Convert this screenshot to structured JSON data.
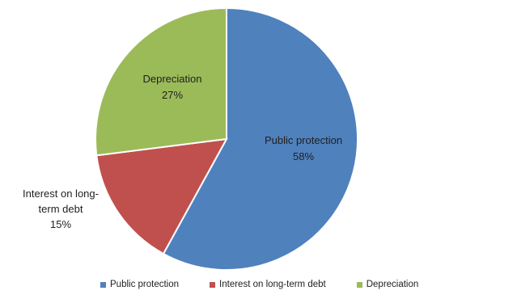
{
  "chart_data": {
    "type": "pie",
    "title": "",
    "slices": [
      {
        "name": "Public protection",
        "value": 58,
        "label": "58%",
        "color": "#4f81bd"
      },
      {
        "name": "Interest on long-term debt",
        "value": 15,
        "label": "15%",
        "color": "#c0504d"
      },
      {
        "name": "Depreciation",
        "value": 27,
        "label": "27%",
        "color": "#9bbb59"
      }
    ],
    "data_label_lines": {
      "public_protection": [
        "Public protection",
        "58%"
      ],
      "interest": [
        "Interest on long-",
        "term debt",
        "15%"
      ],
      "depreciation": [
        "Depreciation",
        "27%"
      ]
    },
    "legend": {
      "placement": "bottom",
      "items": [
        "Public protection",
        "Interest on long-term debt",
        "Depreciation"
      ]
    }
  }
}
